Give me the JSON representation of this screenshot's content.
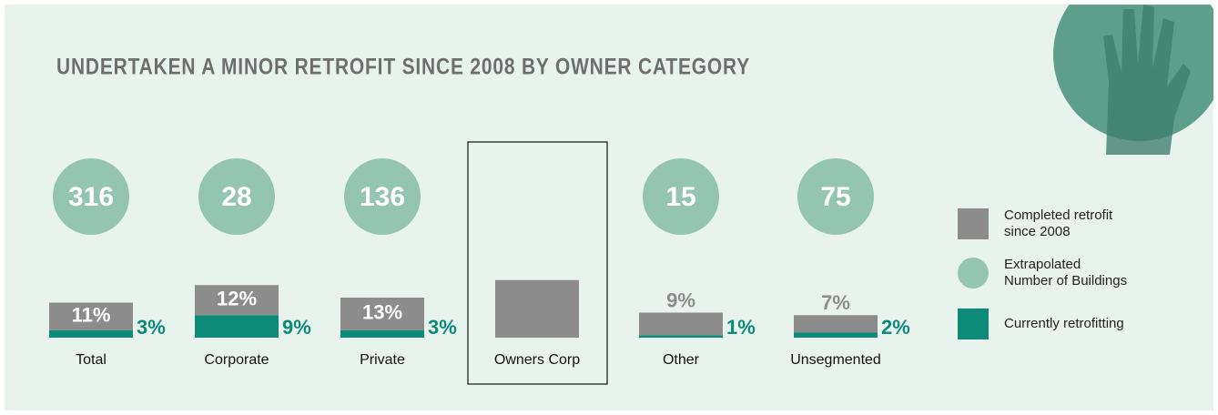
{
  "chart_data": {
    "type": "infographic-bar",
    "title": "UNDERTAKEN A MINOR RETROFIT SINCE 2008 BY OWNER CATEGORY",
    "categories": [
      "Total",
      "Corporate",
      "Private",
      "Owners Corp",
      "Other",
      "Unsegmented"
    ],
    "highlight": "Owners Corp",
    "series": [
      {
        "name": "Completed retrofit since 2008",
        "color": "#8c8c8c",
        "values": [
          11,
          12,
          13,
          23,
          9,
          7
        ],
        "value_labels": [
          "11%",
          "12%",
          "13%",
          null,
          "9%",
          "7%"
        ]
      },
      {
        "name": "Extrapolated Number of Buildings",
        "color": "#93c5b0",
        "values": [
          316,
          28,
          136,
          null,
          15,
          75
        ]
      },
      {
        "name": "Currently retrofitting",
        "color": "#0e8a78",
        "values": [
          3,
          9,
          3,
          null,
          1,
          2
        ],
        "value_labels": [
          "3%",
          "9%",
          "3%",
          null,
          "1%",
          "2%"
        ]
      }
    ]
  }
}
